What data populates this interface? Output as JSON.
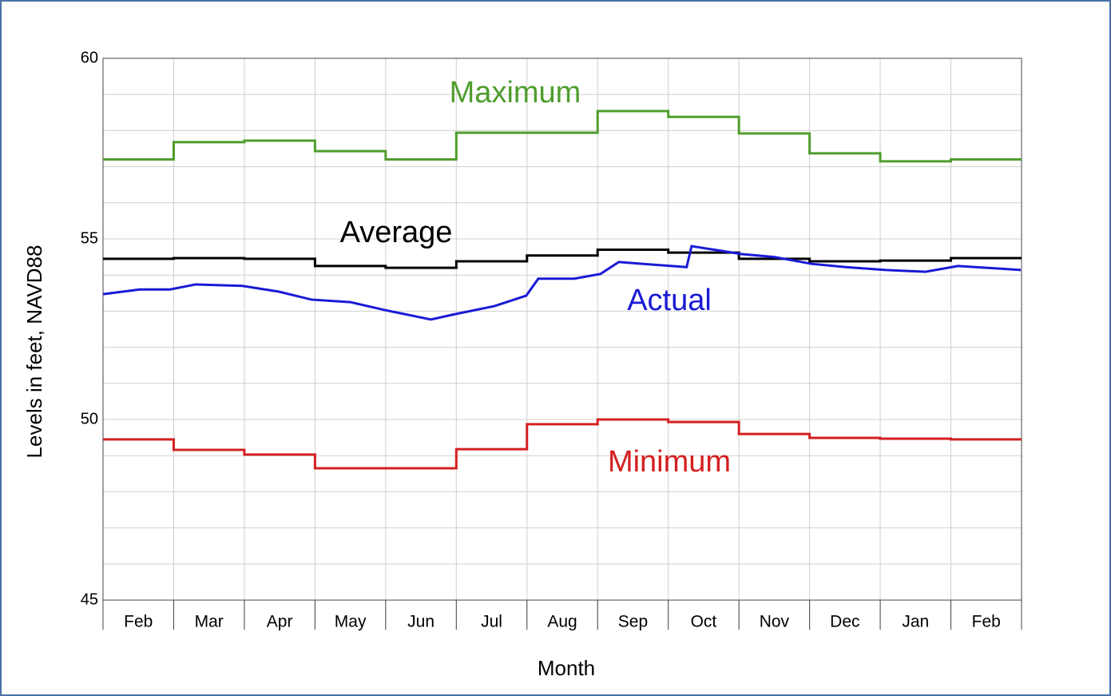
{
  "chart_data": {
    "type": "step-line",
    "x_label": "Month",
    "y_label": "Levels in feet, NAVD88",
    "categories": [
      "Feb",
      "Mar",
      "Apr",
      "May",
      "Jun",
      "Jul",
      "Aug",
      "Sep",
      "Oct",
      "Nov",
      "Dec",
      "Jan",
      "Feb"
    ],
    "ylim": [
      45,
      60
    ],
    "yticks": [
      45,
      50,
      55,
      60
    ],
    "minor_yticks": [
      46,
      47,
      48,
      49,
      51,
      52,
      53,
      54,
      56,
      57,
      58,
      59
    ],
    "grid": true,
    "series": [
      {
        "name": "Maximum",
        "color": "#4f9d2d",
        "values": [
          57.2,
          57.68,
          57.72,
          57.43,
          57.2,
          57.94,
          57.94,
          58.54,
          58.38,
          57.92,
          57.37,
          57.15,
          57.2
        ]
      },
      {
        "name": "Average",
        "color": "#000000",
        "values": [
          54.45,
          54.47,
          54.45,
          54.25,
          54.2,
          54.38,
          54.54,
          54.7,
          54.62,
          54.45,
          54.38,
          54.4,
          54.47
        ]
      },
      {
        "name": "Actual",
        "color": "#1a1ad6",
        "type": "line",
        "x": [
          0,
          0.52,
          0.95,
          1.31,
          1.97,
          2.49,
          2.95,
          3.5,
          3.99,
          4.64,
          4.99,
          5.54,
          5.99,
          6.16,
          6.67,
          7.04,
          7.3,
          7.7,
          8.26,
          8.33,
          9.04,
          9.5,
          10.03,
          10.51,
          11.08,
          11.64,
          12.1,
          12.99
        ],
        "values": [
          53.47,
          53.6,
          53.6,
          53.74,
          53.7,
          53.54,
          53.32,
          53.25,
          53.03,
          52.77,
          52.92,
          53.14,
          53.43,
          53.9,
          53.9,
          54.03,
          54.36,
          54.3,
          54.22,
          54.8,
          54.58,
          54.5,
          54.31,
          54.22,
          54.14,
          54.09,
          54.25,
          54.14
        ]
      },
      {
        "name": "Minimum",
        "color": "#d42020",
        "values": [
          49.45,
          49.16,
          49.03,
          48.65,
          48.65,
          49.18,
          49.87,
          50.0,
          49.93,
          49.6,
          49.49,
          49.47,
          49.45
        ]
      }
    ]
  }
}
